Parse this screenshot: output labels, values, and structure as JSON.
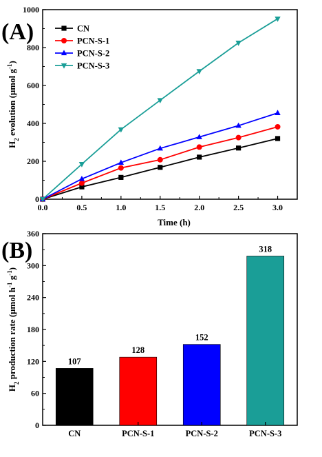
{
  "chart_data": [
    {
      "type": "line",
      "panel_label": "(A)",
      "xlabel": "Time (h)",
      "ylabel": "H2 evolution (μmol g-1)",
      "ylabel_parts": {
        "main": "H",
        "sub": "2",
        "rest": " evolution (μmol g",
        "sup": "-1",
        "close": ")"
      },
      "xlim": [
        0,
        3.25
      ],
      "ylim": [
        0,
        1000
      ],
      "xticks": [
        "0.0",
        "0.5",
        "1.0",
        "1.5",
        "2.0",
        "2.5",
        "3.0"
      ],
      "yticks": [
        "0",
        "200",
        "400",
        "600",
        "800",
        "1000"
      ],
      "x": [
        0,
        0.5,
        1.0,
        1.5,
        2.0,
        2.5,
        3.0
      ],
      "legend_position": "top-left",
      "grid": false,
      "series": [
        {
          "name": "CN",
          "color": "#000000",
          "marker": "square",
          "values": [
            0,
            65,
            115,
            168,
            222,
            270,
            320
          ]
        },
        {
          "name": "PCN-S-1",
          "color": "#ff0000",
          "marker": "circle",
          "values": [
            0,
            85,
            165,
            208,
            275,
            325,
            382
          ]
        },
        {
          "name": "PCN-S-2",
          "color": "#0000ff",
          "marker": "triangle-up",
          "values": [
            0,
            107,
            193,
            268,
            328,
            388,
            455
          ]
        },
        {
          "name": "PCN-S-3",
          "color": "#1a9e97",
          "marker": "triangle-down",
          "values": [
            0,
            185,
            368,
            522,
            675,
            825,
            952
          ]
        }
      ]
    },
    {
      "type": "bar",
      "panel_label": "(B)",
      "xlabel": "",
      "ylabel": "H2 production rate (μmol h-1 g-1)",
      "ylabel_parts": {
        "main": "H",
        "sub": "2",
        "rest1": " production rate (μmol h",
        "sup1": "-1",
        "rest2": " g",
        "sup2": "-1",
        "close": ")"
      },
      "ylim": [
        0,
        360
      ],
      "yticks": [
        "0",
        "60",
        "120",
        "180",
        "240",
        "300",
        "360"
      ],
      "categories": [
        "CN",
        "PCN-S-1",
        "PCN-S-2",
        "PCN-S-3"
      ],
      "values": [
        107,
        128,
        152,
        318
      ],
      "value_labels": [
        "107",
        "128",
        "152",
        "318"
      ],
      "colors": [
        "#000000",
        "#ff0000",
        "#0000ff",
        "#1a9e97"
      ],
      "grid": false
    }
  ]
}
